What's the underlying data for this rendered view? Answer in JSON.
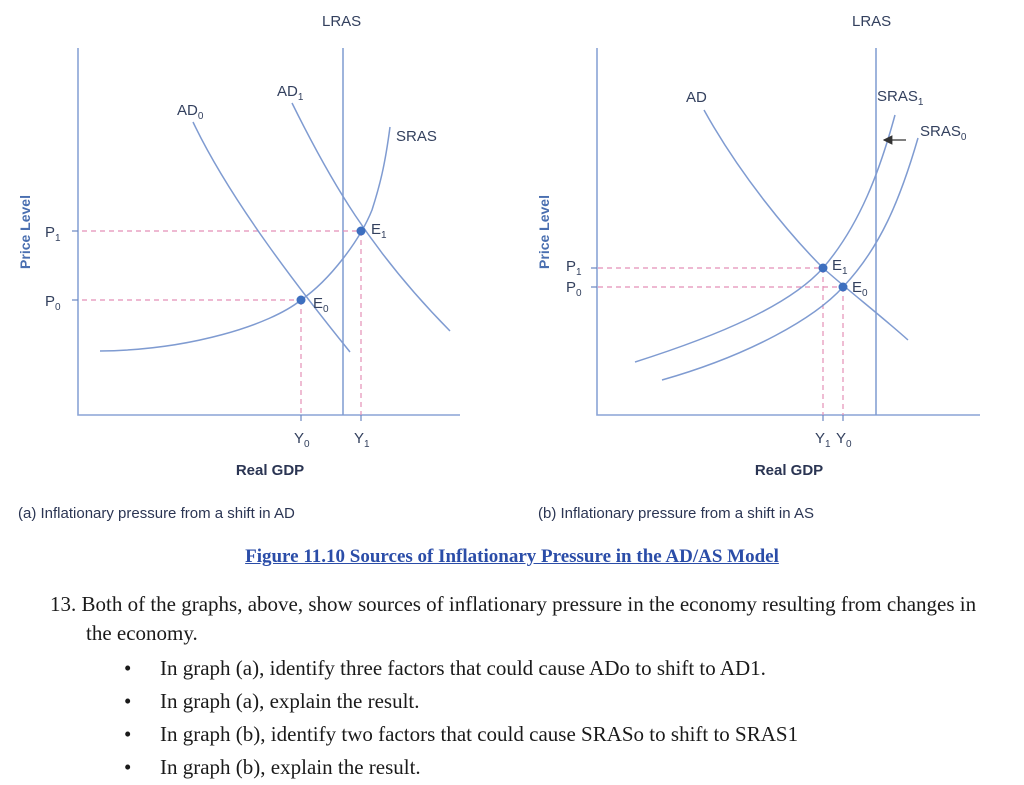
{
  "graph_a": {
    "lras_label": "LRAS",
    "ad0_label": "AD",
    "ad0_sub": "0",
    "ad1_label": "AD",
    "ad1_sub": "1",
    "sras_label": "SRAS",
    "y_axis_label": "Price Level",
    "x_axis_label": "Real GDP",
    "p1_label": "P",
    "p1_sub": "1",
    "p0_label": "P",
    "p0_sub": "0",
    "e1_label": "E",
    "e1_sub": "1",
    "e0_label": "E",
    "e0_sub": "0",
    "y0_label": "Y",
    "y0_sub": "0",
    "y1_label": "Y",
    "y1_sub": "1",
    "caption": "(a) Inflationary pressure from a shift in AD"
  },
  "graph_b": {
    "lras_label": "LRAS",
    "ad_label": "AD",
    "sras1_label": "SRAS",
    "sras1_sub": "1",
    "sras0_label": "SRAS",
    "sras0_sub": "0",
    "y_axis_label": "Price Level",
    "x_axis_label": "Real GDP",
    "p1_label": "P",
    "p1_sub": "1",
    "p0_label": "P",
    "p0_sub": "0",
    "e1_label": "E",
    "e1_sub": "1",
    "e0_label": "E",
    "e0_sub": "0",
    "y1_label": "Y",
    "y1_sub": "1",
    "y0_label": "Y",
    "y0_sub": "0",
    "caption": "(b) Inflationary pressure from a shift in AS"
  },
  "figure_title": "Figure 11.10 Sources of Inflationary Pressure in the AD/AS Model ",
  "question": {
    "number": "13.",
    "text": "Both of the graphs, above, show sources of inflationary pressure in the economy resulting from changes in the economy.",
    "bullets": [
      "In graph (a), identify three factors that could cause ADo to shift to AD1.",
      "In graph (a), explain the result.",
      "In graph (b), identify two factors that could cause SRASo to shift to SRAS1",
      "In graph (b), explain the result."
    ],
    "bullet_glyph": "•"
  },
  "colors": {
    "curve": "#7f9bd1",
    "dashed": "#e48fb6",
    "point": "#3d6fbf",
    "caption_link": "#2b4da8"
  }
}
